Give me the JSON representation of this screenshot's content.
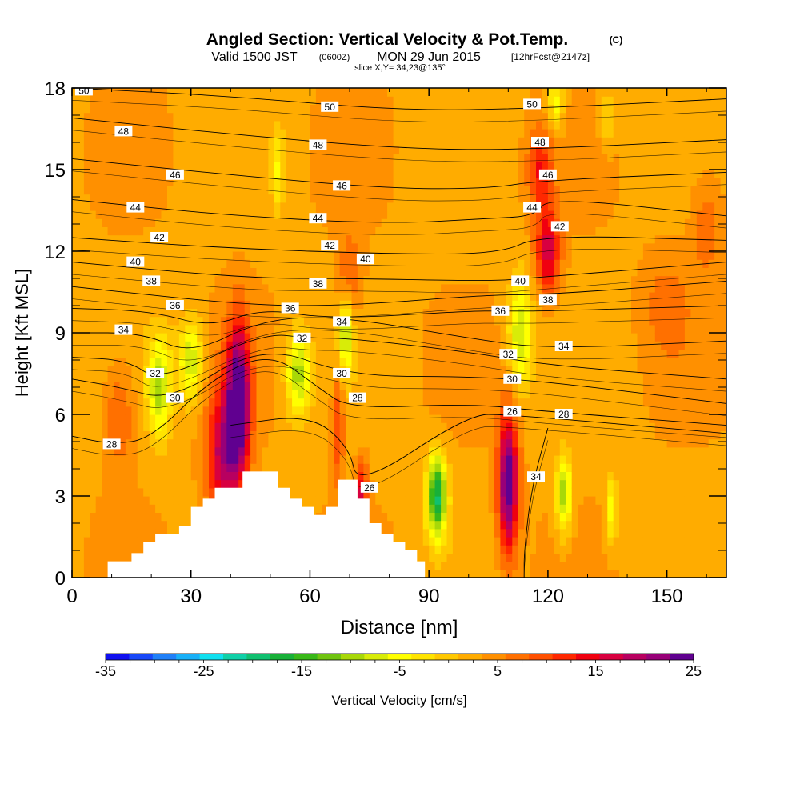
{
  "header": {
    "title_main": "Angled Section: Vertical Velocity & Pot.Temp.",
    "title_unit": "(C)",
    "valid_a": "Valid 1500 JST",
    "valid_b": "(0600Z)",
    "valid_c": "MON 29 Jun 2015",
    "valid_d": "[12hrFcst@2147z]",
    "slice": "slice X,Y= 34,23@135°"
  },
  "chart_data": {
    "type": "heatmap",
    "title": "Angled Section: Vertical Velocity & Pot.Temp.",
    "xlabel": "Distance [nm]",
    "ylabel": "Height [Kft MSL]",
    "xlim": [
      0,
      165
    ],
    "ylim": [
      0,
      18
    ],
    "xticks": [
      0,
      30,
      60,
      90,
      120,
      150
    ],
    "yticks": [
      0,
      3,
      6,
      9,
      12,
      15,
      18
    ],
    "colorbar": {
      "label": "Vertical Velocity [cm/s]",
      "min": -35,
      "max": 25,
      "step": 2.5,
      "tick_labels": [
        -35,
        -25,
        -15,
        -5,
        5,
        15,
        25
      ],
      "colors": [
        "#1010f0",
        "#1848f8",
        "#2080f8",
        "#18b0f8",
        "#10e0f0",
        "#10d0a8",
        "#10c070",
        "#18b038",
        "#38b818",
        "#70c410",
        "#a8d808",
        "#d8ec08",
        "#ffff00",
        "#ffe400",
        "#ffc800",
        "#ffac00",
        "#ff9000",
        "#ff7000",
        "#ff5000",
        "#ff2800",
        "#f00010",
        "#d80040",
        "#b80060",
        "#980078",
        "#600090"
      ]
    },
    "velocity_features": [
      {
        "x": 42,
        "y": 6.5,
        "value": 25,
        "sx": 3,
        "sy": 2.8
      },
      {
        "x": 38,
        "y": 4.5,
        "value": 16,
        "sx": 4,
        "sy": 2.5
      },
      {
        "x": 110,
        "y": 3.5,
        "value": 24,
        "sx": 2.5,
        "sy": 2.5
      },
      {
        "x": 120,
        "y": 12,
        "value": 15,
        "sx": 3,
        "sy": 1.5
      },
      {
        "x": 118,
        "y": 15,
        "value": 10,
        "sx": 3,
        "sy": 1.5
      },
      {
        "x": 70,
        "y": 11,
        "value": 7,
        "sx": 3,
        "sy": 1.5
      },
      {
        "x": 67,
        "y": 5.5,
        "value": 9,
        "sx": 1.5,
        "sy": 2
      },
      {
        "x": 73,
        "y": 3,
        "value": 14,
        "sx": 1.5,
        "sy": 1.2
      },
      {
        "x": 22,
        "y": 7,
        "value": -13,
        "sx": 3,
        "sy": 1.8
      },
      {
        "x": 30,
        "y": 8,
        "value": -12,
        "sx": 3,
        "sy": 1.5
      },
      {
        "x": 57,
        "y": 7.5,
        "value": -13,
        "sx": 3,
        "sy": 1.5
      },
      {
        "x": 69,
        "y": 9,
        "value": -12,
        "sx": 1.8,
        "sy": 1.5
      },
      {
        "x": 92,
        "y": 3,
        "value": -22,
        "sx": 2.5,
        "sy": 1.5
      },
      {
        "x": 113,
        "y": 9,
        "value": -12,
        "sx": 3,
        "sy": 2
      },
      {
        "x": 124,
        "y": 3,
        "value": -14,
        "sx": 2,
        "sy": 1.4
      },
      {
        "x": 136,
        "y": 2.5,
        "value": -9,
        "sx": 1.5,
        "sy": 1.2
      },
      {
        "x": 52,
        "y": 15,
        "value": -7,
        "sx": 1.5,
        "sy": 1.5
      },
      {
        "x": 122,
        "y": 17.5,
        "value": -9,
        "sx": 2,
        "sy": 1
      },
      {
        "x": 135,
        "y": 17,
        "value": -6,
        "sx": 2,
        "sy": 1
      },
      {
        "x": 150,
        "y": 10,
        "value": 4,
        "sx": 6,
        "sy": 2
      },
      {
        "x": 12,
        "y": 6,
        "value": 6,
        "sx": 4,
        "sy": 2
      },
      {
        "x": 160,
        "y": 13,
        "value": 5,
        "sx": 4,
        "sy": 2
      }
    ],
    "terrain": [
      [
        0,
        0
      ],
      [
        9,
        0
      ],
      [
        9,
        0.6
      ],
      [
        15,
        0.6
      ],
      [
        15,
        0.9
      ],
      [
        18,
        0.9
      ],
      [
        18,
        1.3
      ],
      [
        21,
        1.3
      ],
      [
        21,
        1.6
      ],
      [
        27,
        1.6
      ],
      [
        27,
        1.9
      ],
      [
        30,
        1.9
      ],
      [
        30,
        2.6
      ],
      [
        33,
        2.6
      ],
      [
        33,
        2.9
      ],
      [
        36,
        2.9
      ],
      [
        36,
        3.3
      ],
      [
        43,
        3.3
      ],
      [
        43,
        3.9
      ],
      [
        52,
        3.9
      ],
      [
        52,
        3.3
      ],
      [
        55,
        3.3
      ],
      [
        55,
        2.9
      ],
      [
        58,
        2.9
      ],
      [
        58,
        2.6
      ],
      [
        61,
        2.6
      ],
      [
        61,
        2.3
      ],
      [
        64,
        2.3
      ],
      [
        64,
        2.6
      ],
      [
        67,
        2.6
      ],
      [
        67,
        3.6
      ],
      [
        72,
        3.6
      ],
      [
        72,
        2.9
      ],
      [
        75,
        2.9
      ],
      [
        75,
        2.0
      ],
      [
        78,
        2.0
      ],
      [
        78,
        1.6
      ],
      [
        81,
        1.6
      ],
      [
        81,
        1.3
      ],
      [
        84,
        1.3
      ],
      [
        84,
        1.0
      ],
      [
        87,
        1.0
      ],
      [
        87,
        0.6
      ],
      [
        89,
        0.6
      ],
      [
        89,
        0
      ],
      [
        165,
        0
      ]
    ],
    "theta_contours": [
      {
        "label": "50",
        "pts": [
          [
            0,
            18.0
          ],
          [
            40,
            17.7
          ],
          [
            80,
            17.2
          ],
          [
            110,
            17.2
          ],
          [
            165,
            17.6
          ]
        ],
        "labels": [
          [
            3,
            17.9
          ],
          [
            65,
            17.3
          ],
          [
            116,
            17.4
          ]
        ]
      },
      {
        "label": "48",
        "pts": [
          [
            0,
            16.9
          ],
          [
            40,
            16.3
          ],
          [
            80,
            15.8
          ],
          [
            110,
            15.7
          ],
          [
            165,
            16.1
          ]
        ],
        "labels": [
          [
            13,
            16.4
          ],
          [
            62,
            15.9
          ],
          [
            118,
            16.0
          ]
        ]
      },
      {
        "label": "46",
        "pts": [
          [
            0,
            15.4
          ],
          [
            40,
            14.8
          ],
          [
            80,
            14.3
          ],
          [
            105,
            14.3
          ],
          [
            118,
            14.6
          ],
          [
            165,
            14.9
          ]
        ],
        "labels": [
          [
            26,
            14.8
          ],
          [
            68,
            14.4
          ],
          [
            120,
            14.8
          ]
        ]
      },
      {
        "label": "44",
        "pts": [
          [
            0,
            13.9
          ],
          [
            40,
            13.3
          ],
          [
            80,
            13.0
          ],
          [
            105,
            13.2
          ],
          [
            117,
            13.3
          ],
          [
            120,
            14
          ],
          [
            165,
            13.3
          ]
        ],
        "labels": [
          [
            16,
            13.6
          ],
          [
            62,
            13.2
          ],
          [
            116,
            13.6
          ]
        ]
      },
      {
        "label": "42",
        "pts": [
          [
            0,
            12.5
          ],
          [
            40,
            12.1
          ],
          [
            80,
            11.9
          ],
          [
            108,
            11.9
          ],
          [
            118,
            12.6
          ],
          [
            165,
            12.4
          ]
        ],
        "labels": [
          [
            22,
            12.5
          ],
          [
            65,
            12.2
          ],
          [
            123,
            12.9
          ]
        ]
      },
      {
        "label": "40",
        "pts": [
          [
            0,
            11.6
          ],
          [
            45,
            11.0
          ],
          [
            70,
            11.0
          ],
          [
            105,
            10.9
          ],
          [
            115,
            11.0
          ],
          [
            165,
            11.6
          ]
        ],
        "labels": [
          [
            16,
            11.6
          ],
          [
            74,
            11.7
          ],
          [
            113,
            10.9
          ]
        ]
      },
      {
        "label": "38",
        "pts": [
          [
            0,
            10.7
          ],
          [
            45,
            10.0
          ],
          [
            70,
            10.0
          ],
          [
            105,
            10.4
          ],
          [
            120,
            10.4
          ],
          [
            165,
            10.9
          ]
        ],
        "labels": [
          [
            20,
            10.9
          ],
          [
            62,
            10.8
          ],
          [
            120,
            10.2
          ]
        ]
      },
      {
        "label": "36",
        "pts": [
          [
            0,
            9.9
          ],
          [
            20,
            9.8
          ],
          [
            35,
            9.2
          ],
          [
            48,
            9.9
          ],
          [
            65,
            9.5
          ],
          [
            100,
            9.8
          ],
          [
            108,
            9.8
          ],
          [
            120,
            9.8
          ],
          [
            165,
            10.0
          ]
        ],
        "labels": [
          [
            26,
            10.0
          ],
          [
            55,
            9.9
          ],
          [
            108,
            9.8
          ]
        ]
      },
      {
        "label": "34",
        "pts": [
          [
            0,
            9.0
          ],
          [
            18,
            9.0
          ],
          [
            30,
            8.2
          ],
          [
            48,
            9.5
          ],
          [
            68,
            9.6
          ],
          [
            100,
            8.8
          ],
          [
            120,
            8.4
          ],
          [
            165,
            8.7
          ]
        ],
        "labels": [
          [
            13,
            9.1
          ],
          [
            68,
            9.4
          ],
          [
            124,
            8.5
          ]
        ]
      },
      {
        "label": "32",
        "pts": [
          [
            0,
            8.1
          ],
          [
            14,
            8.0
          ],
          [
            22,
            7.2
          ],
          [
            48,
            9.0
          ],
          [
            60,
            8.8
          ],
          [
            70,
            8.8
          ],
          [
            100,
            8.3
          ],
          [
            120,
            7.8
          ],
          [
            165,
            7.3
          ]
        ],
        "labels": [
          [
            21,
            7.5
          ],
          [
            58,
            8.8
          ],
          [
            110,
            8.2
          ]
        ]
      },
      {
        "label": "30",
        "pts": [
          [
            0,
            7.3
          ],
          [
            12,
            7.0
          ],
          [
            25,
            6.5
          ],
          [
            48,
            8.6
          ],
          [
            70,
            7.4
          ],
          [
            100,
            7.4
          ],
          [
            120,
            7.2
          ],
          [
            165,
            6.4
          ]
        ],
        "labels": [
          [
            26,
            6.6
          ],
          [
            68,
            7.5
          ],
          [
            111,
            7.3
          ]
        ]
      },
      {
        "label": "28",
        "pts": [
          [
            0,
            5.2
          ],
          [
            10,
            4.9
          ],
          [
            20,
            5.1
          ],
          [
            35,
            7.3
          ],
          [
            50,
            8.3
          ],
          [
            62,
            7.0
          ],
          [
            70,
            6.2
          ],
          [
            100,
            6.4
          ],
          [
            120,
            6.1
          ],
          [
            165,
            5.6
          ]
        ],
        "labels": [
          [
            10,
            4.9
          ],
          [
            72,
            6.6
          ],
          [
            124,
            6.0
          ]
        ]
      },
      {
        "label": "26",
        "pts": [
          [
            40,
            5.6
          ],
          [
            60,
            6.0
          ],
          [
            70,
            4.8
          ],
          [
            72,
            3.3
          ],
          [
            100,
            6.0
          ],
          [
            110,
            6.0
          ],
          [
            165,
            5.3
          ]
        ],
        "labels": [
          [
            75,
            3.3
          ],
          [
            111,
            6.1
          ]
        ]
      },
      {
        "label": "34",
        "pts": [
          [
            120,
            5.5
          ],
          [
            116,
            3.4
          ],
          [
            114,
            1.0
          ],
          [
            114,
            0
          ]
        ],
        "labels": [
          [
            117,
            3.7
          ]
        ]
      }
    ]
  }
}
